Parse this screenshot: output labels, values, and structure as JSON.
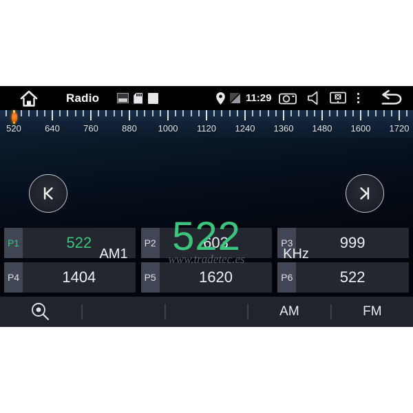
{
  "header": {
    "title": "Radio",
    "time": "11:29",
    "icons": [
      "home-icon",
      "gallery-icon",
      "sd-card-icon",
      "storage-square-icon",
      "location-pin-icon",
      "no-signal-icon",
      "camera-icon",
      "speaker-icon",
      "tablet-x-icon",
      "overflow-menu-icon",
      "back-icon"
    ]
  },
  "tuner_scale": {
    "labels": [
      "520",
      "640",
      "760",
      "880",
      "1000",
      "1120",
      "1240",
      "1360",
      "1480",
      "1600",
      "1720"
    ],
    "min": 520,
    "max": 1720,
    "major_step": 120,
    "minor_step": 24,
    "indicator_frequency": 522
  },
  "display": {
    "band": "AM1",
    "frequency": "522",
    "unit": "KHz",
    "watermark": "www.tradetec.es",
    "prev_icon": "seek-previous",
    "next_icon": "seek-next"
  },
  "presets": [
    {
      "label": "P1",
      "value": "522",
      "active": true
    },
    {
      "label": "P2",
      "value": "603",
      "active": false
    },
    {
      "label": "P3",
      "value": "999",
      "active": false
    },
    {
      "label": "P4",
      "value": "1404",
      "active": false
    },
    {
      "label": "P5",
      "value": "1620",
      "active": false
    },
    {
      "label": "P6",
      "value": "522",
      "active": false
    }
  ],
  "bottom_bar": {
    "scan_icon": "magnifier",
    "am_label": "AM",
    "fm_label": "FM"
  },
  "colors": {
    "accent_green": "#3cc57f",
    "needle_orange": "#e8600f",
    "needle_yellow": "#ffd24a",
    "scale_blue_top": "#1a3048",
    "statusbar_black": "#000000"
  }
}
